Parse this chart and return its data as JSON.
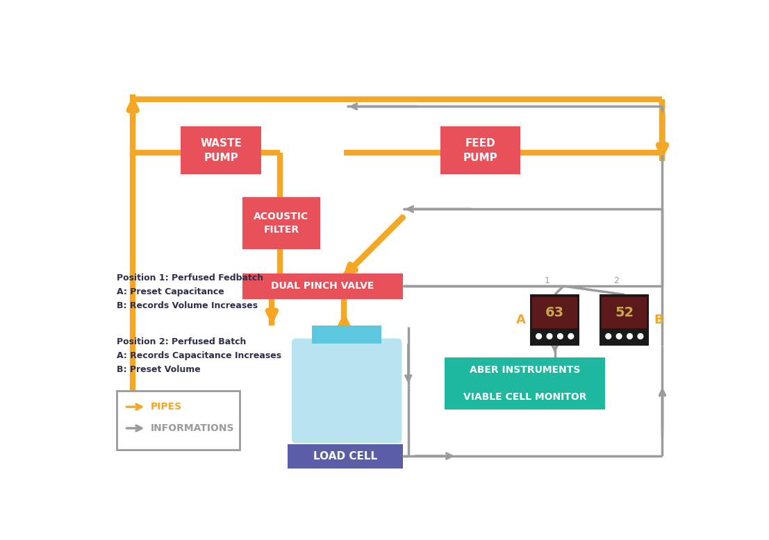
{
  "bg_color": "#ffffff",
  "orange": "#F5A623",
  "gray": "#9B9B9B",
  "pink_red": "#E8515A",
  "teal": "#1DB89E",
  "blue_purple": "#5B5EA6",
  "light_blue": "#B8E4F0",
  "neck_blue": "#5BC8E0",
  "dark_panel": "#1a1a1a",
  "dark_screen": "#5C2020",
  "display_text": "#C8A84B",
  "text_dark": "#2d3047",
  "waste_pump_label": "WASTE\nPUMP",
  "feed_pump_label": "FEED\nPUMP",
  "acoustic_filter_label": "ACOUSTIC\nFILTER",
  "dual_pinch_label": "DUAL PINCH VALVE",
  "load_cell_label": "LOAD CELL",
  "aber_line1": "ABER INSTRUMENTS",
  "aber_line2": "VIABLE CELL MONITOR",
  "pos1_text": "Position 1: Perfused Fedbatch\nA: Preset Capacitance\nB: Records Volume Increases",
  "pos2_text": "Position 2: Perfused Batch\nA: Records Capacitance Increases\nB: Preset Volume",
  "legend_pipes": "PIPES",
  "legend_info": "INFORMATIONS",
  "display_A_val": "63",
  "display_B_val": "52",
  "lw_pipe": 6,
  "lw_info": 2.5
}
